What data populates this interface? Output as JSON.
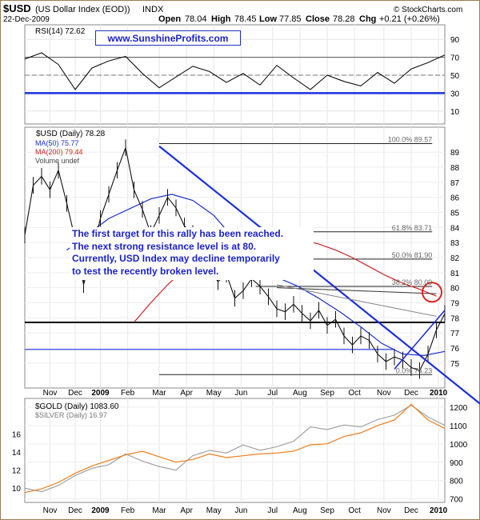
{
  "header": {
    "symbol": "$USD",
    "name": "(US Dollar Index (EOD))",
    "exchange": "INDX",
    "date": "22-Dec-2009",
    "open_label": "Open",
    "open": "78.04",
    "high_label": "High",
    "high": "78.45",
    "low_label": "Low",
    "low": "77.85",
    "close_label": "Close",
    "close": "78.28",
    "chg_label": "Chg",
    "chg": "+0.21 (+0.26%)",
    "copyright": "© StockCharts.com"
  },
  "rsi_panel": {
    "label": "RSI(14) 72.62",
    "url_label": "www.SunshineProfits.com",
    "ticks": [
      "90",
      "70",
      "50",
      "30",
      "10"
    ]
  },
  "main_panel": {
    "label": "$USD (Daily) 78.28",
    "ma50_label": "MA(50) 75.77",
    "ma200_label": "MA(200) 79.44",
    "volume_label": "Volume undef",
    "fib": [
      {
        "label": "100.0% 89.57",
        "value": 89.57
      },
      {
        "label": "61.8% 83.71",
        "value": 83.71
      },
      {
        "label": "50.0% 81.90",
        "value": 81.9
      },
      {
        "label": "38.2% 80.09",
        "value": 80.09
      },
      {
        "label": "0.0% 74.23",
        "value": 74.23
      }
    ],
    "annotation": [
      "The first target for this rally has been reached.",
      "The next strong resistance level is at 80.",
      "Currently, USD Index may decline temporarily",
      "to test the recently broken level."
    ]
  },
  "bottom_panel": {
    "gold_label": "$GOLD (Daily) 1083.60",
    "silver_label": "$SILVER (Daily) 16.97",
    "right_ticks": [
      "1200",
      "1100",
      "1000",
      "900",
      "800",
      "700"
    ],
    "left_ticks": [
      "16",
      "14",
      "12",
      "10"
    ]
  },
  "x_axis": [
    "Nov",
    "Dec",
    "2009",
    "Feb",
    "Mar",
    "Apr",
    "May",
    "Jun",
    "Jul",
    "Aug",
    "Sep",
    "Oct",
    "Nov",
    "Dec",
    "2010"
  ],
  "colors": {
    "price": "#111111",
    "ma50": "#1a2fcc",
    "ma200": "#cc2222",
    "trend": "#1d2fe0",
    "gold": "#f07d1a",
    "silver": "#9a9a9a",
    "circle": "#e02020",
    "bg_tint": "#ffffff"
  },
  "chart_data": [
    {
      "type": "line",
      "title": "RSI(14) 72.62",
      "ylim": [
        0,
        100
      ],
      "yticks": [
        90,
        70,
        50,
        30,
        10
      ],
      "series": [
        {
          "name": "RSI(14) 72.62",
          "x": [
            0,
            0.04,
            0.08,
            0.12,
            0.16,
            0.2,
            0.24,
            0.28,
            0.32,
            0.36,
            0.4,
            0.44,
            0.48,
            0.52,
            0.56,
            0.6,
            0.64,
            0.68,
            0.72,
            0.76,
            0.8,
            0.84,
            0.88,
            0.92,
            0.96,
            1.0
          ],
          "values": [
            68,
            75,
            62,
            34,
            58,
            66,
            71,
            52,
            36,
            48,
            60,
            54,
            42,
            52,
            39,
            61,
            47,
            34,
            50,
            43,
            38,
            53,
            41,
            57,
            64,
            72.62
          ]
        }
      ]
    },
    {
      "type": "line",
      "title": "$USD (Daily) 78.28",
      "ylim": [
        73.5,
        90.5
      ],
      "yticks": [
        89,
        88,
        87,
        86,
        85,
        84,
        83,
        82,
        81,
        80,
        79,
        78,
        77,
        76,
        75
      ],
      "categories": [
        "Nov",
        "Dec",
        "2009",
        "Feb",
        "Mar",
        "Apr",
        "May",
        "Jun",
        "Jul",
        "Aug",
        "Sep",
        "Oct",
        "Nov",
        "Dec",
        "2010"
      ],
      "series": [
        {
          "name": "$USD (Daily) 78.28",
          "x": [
            0,
            0.02,
            0.04,
            0.06,
            0.08,
            0.1,
            0.12,
            0.14,
            0.16,
            0.18,
            0.2,
            0.22,
            0.24,
            0.26,
            0.28,
            0.3,
            0.32,
            0.34,
            0.36,
            0.38,
            0.4,
            0.42,
            0.44,
            0.46,
            0.48,
            0.5,
            0.52,
            0.54,
            0.56,
            0.58,
            0.6,
            0.62,
            0.64,
            0.66,
            0.68,
            0.7,
            0.72,
            0.74,
            0.76,
            0.78,
            0.8,
            0.82,
            0.84,
            0.86,
            0.88,
            0.9,
            0.92,
            0.94,
            0.96,
            0.98,
            1.0
          ],
          "values": [
            83.5,
            86.8,
            87.4,
            86.5,
            87.8,
            85.6,
            83.2,
            80.2,
            82.3,
            84.6,
            86.2,
            87.8,
            89.3,
            86.5,
            85.2,
            83.6,
            84.8,
            86.0,
            85.3,
            84.1,
            83.6,
            83.0,
            81.2,
            80.4,
            80.9,
            79.3,
            79.8,
            80.6,
            80.1,
            79.4,
            78.6,
            78.4,
            78.9,
            78.3,
            77.8,
            78.5,
            77.5,
            77.9,
            76.8,
            76.2,
            76.8,
            76.5,
            75.6,
            75.1,
            75.4,
            75.2,
            74.7,
            74.5,
            75.6,
            77.2,
            78.28
          ]
        },
        {
          "name": "MA(50) 75.77",
          "x": [
            0.1,
            0.2,
            0.3,
            0.35,
            0.4,
            0.45,
            0.5,
            0.55,
            0.6,
            0.65,
            0.7,
            0.75,
            0.8,
            0.85,
            0.9,
            0.95,
            1.0
          ],
          "values": [
            82.5,
            84.6,
            85.9,
            86.2,
            85.8,
            84.8,
            83.2,
            81.7,
            80.7,
            80.1,
            79.3,
            78.4,
            77.4,
            76.3,
            75.6,
            75.5,
            75.77
          ]
        },
        {
          "name": "MA(200) 79.44",
          "x": [
            0.26,
            0.3,
            0.34,
            0.38,
            0.42,
            0.46,
            0.5,
            0.54,
            0.58,
            0.62,
            0.66,
            0.7,
            0.74,
            0.78,
            0.82,
            0.86,
            0.9,
            0.94,
            0.98
          ],
          "values": [
            77.7,
            79.0,
            80.2,
            81.2,
            82.0,
            82.7,
            83.2,
            83.4,
            83.5,
            83.4,
            83.2,
            82.9,
            82.5,
            82.0,
            81.4,
            80.8,
            80.3,
            79.9,
            79.44
          ]
        }
      ]
    },
    {
      "type": "line",
      "title": "$GOLD (Daily) 1083.60",
      "ylim": [
        690,
        1230
      ],
      "yticks": [
        1200,
        1100,
        1000,
        900,
        800,
        700
      ],
      "series": [
        {
          "name": "$GOLD (Daily) 1083.60",
          "x": [
            0,
            0.04,
            0.08,
            0.12,
            0.16,
            0.2,
            0.24,
            0.28,
            0.32,
            0.36,
            0.4,
            0.44,
            0.48,
            0.52,
            0.56,
            0.6,
            0.64,
            0.68,
            0.72,
            0.76,
            0.8,
            0.84,
            0.88,
            0.92,
            0.96,
            1.0
          ],
          "values": [
            735,
            755,
            790,
            840,
            880,
            910,
            940,
            960,
            930,
            900,
            915,
            945,
            925,
            935,
            945,
            950,
            960,
            995,
            1000,
            1040,
            1060,
            1100,
            1130,
            1215,
            1130,
            1083.6
          ]
        },
        {
          "name": "$SILVER (Daily) 16.97",
          "x": [
            0,
            0.04,
            0.08,
            0.12,
            0.16,
            0.2,
            0.24,
            0.28,
            0.32,
            0.36,
            0.4,
            0.44,
            0.48,
            0.52,
            0.56,
            0.6,
            0.64,
            0.68,
            0.72,
            0.76,
            0.8,
            0.84,
            0.88,
            0.92,
            0.96,
            1.0
          ],
          "values": [
            10.0,
            9.6,
            10.3,
            11.4,
            12.2,
            12.6,
            13.8,
            13.0,
            12.4,
            12.0,
            13.6,
            14.2,
            13.9,
            14.8,
            14.2,
            14.6,
            15.2,
            16.8,
            16.5,
            17.0,
            16.8,
            17.6,
            18.1,
            19.2,
            17.9,
            16.97
          ]
        }
      ]
    }
  ]
}
